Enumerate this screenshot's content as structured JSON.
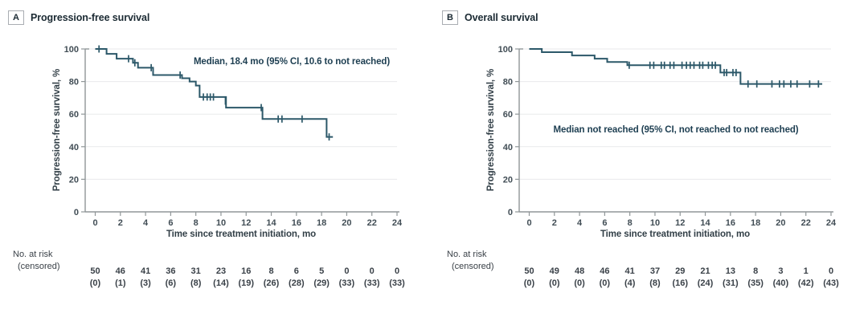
{
  "figure_title": "Kaplan-Meier survival curves",
  "chart_data": [
    {
      "type": "line",
      "subtype": "kaplan-meier-step",
      "panel_label": "A",
      "title": "Progression-free survival",
      "annotation": "Median, 18.4 mo (95% CI, 10.6 to not reached)",
      "xlabel": "Time since treatment initiation, mo",
      "ylabel": "Progression-free survival, %",
      "xlim": [
        0,
        24
      ],
      "ylim": [
        0,
        100
      ],
      "xticks": [
        0,
        2,
        4,
        6,
        8,
        10,
        12,
        14,
        16,
        18,
        20,
        22,
        24
      ],
      "yticks": [
        0,
        20,
        40,
        60,
        80,
        100
      ],
      "grid": true,
      "line_color": "#2c5869",
      "steps": [
        [
          0,
          100
        ],
        [
          0.9,
          97
        ],
        [
          1.7,
          94
        ],
        [
          3.0,
          91.5
        ],
        [
          3.4,
          88.5
        ],
        [
          4.6,
          84
        ],
        [
          6.9,
          82
        ],
        [
          7.5,
          80
        ],
        [
          8.0,
          77.5
        ],
        [
          8.3,
          70.5
        ],
        [
          10.4,
          64
        ],
        [
          13.3,
          57
        ],
        [
          18.4,
          46
        ]
      ],
      "end_time": 18.9,
      "censor_marks": [
        [
          0.3,
          100
        ],
        [
          2.65,
          94
        ],
        [
          3.15,
          91.5
        ],
        [
          4.45,
          88.5
        ],
        [
          6.75,
          84
        ],
        [
          8.6,
          70.5
        ],
        [
          8.9,
          70.5
        ],
        [
          9.15,
          70.5
        ],
        [
          9.4,
          70.5
        ],
        [
          10.35,
          68
        ],
        [
          13.2,
          64
        ],
        [
          14.55,
          57
        ],
        [
          14.85,
          57
        ],
        [
          16.45,
          57
        ],
        [
          18.6,
          46
        ]
      ],
      "at_risk": {
        "label1": "No. at risk",
        "label2": "(censored)",
        "times": [
          0,
          2,
          4,
          6,
          8,
          10,
          12,
          14,
          16,
          18,
          20,
          22,
          24
        ],
        "n": [
          50,
          46,
          41,
          36,
          31,
          23,
          16,
          8,
          6,
          5,
          0,
          0,
          0
        ],
        "censored": [
          0,
          1,
          3,
          6,
          8,
          14,
          19,
          26,
          28,
          29,
          33,
          33,
          33
        ]
      }
    },
    {
      "type": "line",
      "subtype": "kaplan-meier-step",
      "panel_label": "B",
      "title": "Overall survival",
      "annotation": "Median not reached (95% CI, not reached to not reached)",
      "xlabel": "Time since treatment initiation, mo",
      "ylabel": "Progression-free survival, %",
      "xlim": [
        0,
        24
      ],
      "ylim": [
        0,
        100
      ],
      "xticks": [
        0,
        2,
        4,
        6,
        8,
        10,
        12,
        14,
        16,
        18,
        20,
        22,
        24
      ],
      "yticks": [
        0,
        20,
        40,
        60,
        80,
        100
      ],
      "grid": true,
      "line_color": "#2c5869",
      "steps": [
        [
          0,
          100
        ],
        [
          1.0,
          98
        ],
        [
          3.4,
          96
        ],
        [
          5.2,
          94
        ],
        [
          6.2,
          92
        ],
        [
          7.8,
          90
        ],
        [
          15.2,
          85.5
        ],
        [
          16.8,
          78.5
        ]
      ],
      "end_time": 23.3,
      "censor_marks": [
        [
          7.95,
          90
        ],
        [
          9.6,
          90
        ],
        [
          9.9,
          90
        ],
        [
          10.5,
          90
        ],
        [
          10.75,
          90
        ],
        [
          11.2,
          90
        ],
        [
          11.5,
          90
        ],
        [
          12.15,
          90
        ],
        [
          12.5,
          90
        ],
        [
          12.8,
          90
        ],
        [
          13.1,
          90
        ],
        [
          13.55,
          90
        ],
        [
          13.8,
          90
        ],
        [
          14.25,
          90
        ],
        [
          14.55,
          90
        ],
        [
          14.8,
          90
        ],
        [
          15.5,
          85.5
        ],
        [
          15.7,
          85.5
        ],
        [
          16.2,
          85.5
        ],
        [
          16.45,
          85.5
        ],
        [
          17.4,
          78.5
        ],
        [
          18.1,
          78.5
        ],
        [
          19.3,
          78.5
        ],
        [
          19.9,
          78.5
        ],
        [
          20.25,
          78.5
        ],
        [
          20.8,
          78.5
        ],
        [
          21.3,
          78.5
        ],
        [
          22.3,
          78.5
        ],
        [
          23.0,
          78.5
        ]
      ],
      "at_risk": {
        "label1": "No. at risk",
        "label2": "(censored)",
        "times": [
          0,
          2,
          4,
          6,
          8,
          10,
          12,
          14,
          16,
          18,
          20,
          22,
          24
        ],
        "n": [
          50,
          49,
          48,
          46,
          41,
          37,
          29,
          21,
          13,
          8,
          3,
          1,
          0
        ],
        "censored": [
          0,
          0,
          0,
          0,
          4,
          8,
          16,
          24,
          31,
          35,
          40,
          42,
          43
        ]
      }
    }
  ]
}
